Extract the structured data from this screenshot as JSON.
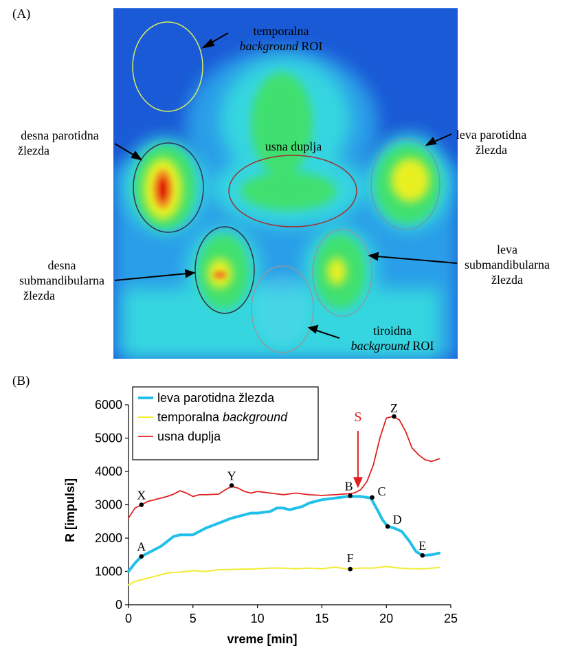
{
  "panel_a": {
    "label": "(A)",
    "annotations": {
      "temporal_roi": {
        "line1": "temporalna",
        "italic": "background",
        "rest": "ROI"
      },
      "right_parotid": {
        "line1": "desna parotidna",
        "line2": "žlezda"
      },
      "oral_cavity": {
        "text": "usna duplja"
      },
      "left_parotid": {
        "line1": "leva parotidna",
        "line2": "žlezda"
      },
      "right_submandibular": {
        "line1": "desna",
        "line2": "submandibularna",
        "line3": "žlezda"
      },
      "left_submandibular": {
        "line1": "leva",
        "line2": "submandibularna",
        "line3": "žlezda"
      },
      "thyroid_roi": {
        "line1": "tiroidna",
        "italic": "background",
        "rest": "ROI"
      }
    },
    "colors": {
      "background": "#1a5ad6",
      "tissue": "#35d6e0",
      "hot": "#e8f020",
      "hottest": "#e00000"
    }
  },
  "panel_b": {
    "label": "(B)"
  },
  "chart_data": {
    "type": "line",
    "xlabel": "vreme [min]",
    "ylabel": "R [impulsi]",
    "xlim": [
      0,
      25
    ],
    "ylim": [
      0,
      6000
    ],
    "xticks": [
      "0",
      "5",
      "10",
      "15",
      "20",
      "25"
    ],
    "yticks": [
      "0",
      "1000",
      "2000",
      "3000",
      "4000",
      "5000",
      "6000"
    ],
    "grid": false,
    "legend_placement": "top-left",
    "series": [
      {
        "name": "leva parotidna žlezda",
        "color": "#20c0ea",
        "x": [
          0,
          0.5,
          1,
          1.5,
          2,
          2.5,
          3,
          3.5,
          4,
          5,
          6,
          7,
          8,
          8.5,
          9,
          9.5,
          10,
          11,
          11.5,
          12,
          12.5,
          13,
          13.5,
          14,
          14.5,
          15,
          16,
          17,
          18,
          18.8,
          19.3,
          19.7,
          20.1,
          20.6,
          21.2,
          21.8,
          22.3,
          22.8,
          23.5,
          24.1
        ],
        "y": [
          1000,
          1250,
          1450,
          1550,
          1650,
          1750,
          1900,
          2050,
          2100,
          2100,
          2300,
          2450,
          2600,
          2650,
          2700,
          2750,
          2750,
          2800,
          2900,
          2900,
          2850,
          2900,
          2950,
          3050,
          3100,
          3150,
          3200,
          3250,
          3250,
          3200,
          2850,
          2550,
          2350,
          2300,
          2200,
          1900,
          1600,
          1480,
          1500,
          1550
        ]
      },
      {
        "name": "temporalna background",
        "name_parts": [
          "temporalna ",
          "background"
        ],
        "color": "#f0ec30",
        "x": [
          0,
          0.5,
          1,
          2,
          2.5,
          3,
          4,
          5,
          6,
          7,
          8,
          9,
          10,
          11,
          12,
          13,
          14,
          15,
          16,
          17,
          18,
          19,
          20,
          21,
          22,
          23,
          24.1
        ],
        "y": [
          600,
          700,
          750,
          850,
          900,
          950,
          980,
          1020,
          1000,
          1050,
          1060,
          1070,
          1080,
          1100,
          1100,
          1080,
          1100,
          1080,
          1130,
          1070,
          1100,
          1100,
          1150,
          1100,
          1080,
          1080,
          1120
        ]
      },
      {
        "name": "usna duplja",
        "color": "#e02020",
        "x": [
          0,
          0.5,
          1,
          1.5,
          2,
          3,
          3.5,
          4,
          4.5,
          5,
          5.5,
          6,
          7,
          7.5,
          8,
          8.5,
          9,
          9.5,
          10,
          11,
          12,
          13,
          14,
          15,
          16,
          17,
          17.5,
          18,
          18.5,
          19,
          19.5,
          20,
          20.5,
          21,
          21.5,
          22,
          22.5,
          23,
          23.5,
          24.1
        ],
        "y": [
          2600,
          2900,
          3000,
          3100,
          3150,
          3250,
          3320,
          3420,
          3350,
          3250,
          3300,
          3300,
          3320,
          3450,
          3550,
          3500,
          3400,
          3350,
          3400,
          3350,
          3300,
          3350,
          3300,
          3280,
          3300,
          3330,
          3350,
          3450,
          3700,
          4200,
          5000,
          5600,
          5650,
          5550,
          5200,
          4700,
          4500,
          4350,
          4300,
          4380
        ]
      }
    ],
    "points": [
      {
        "label": "X",
        "x": 1.0,
        "y": 3000
      },
      {
        "label": "Y",
        "x": 8.0,
        "y": 3580
      },
      {
        "label": "A",
        "x": 1.0,
        "y": 1450
      },
      {
        "label": "B",
        "x": 17.2,
        "y": 3270
      },
      {
        "label": "C",
        "x": 18.9,
        "y": 3220
      },
      {
        "label": "D",
        "x": 20.1,
        "y": 2350
      },
      {
        "label": "E",
        "x": 22.8,
        "y": 1480
      },
      {
        "label": "F",
        "x": 17.2,
        "y": 1070
      },
      {
        "label": "Z",
        "x": 20.6,
        "y": 5650
      }
    ],
    "stimulus": {
      "label": "S",
      "x": 17.8,
      "color": "#e02020"
    }
  }
}
